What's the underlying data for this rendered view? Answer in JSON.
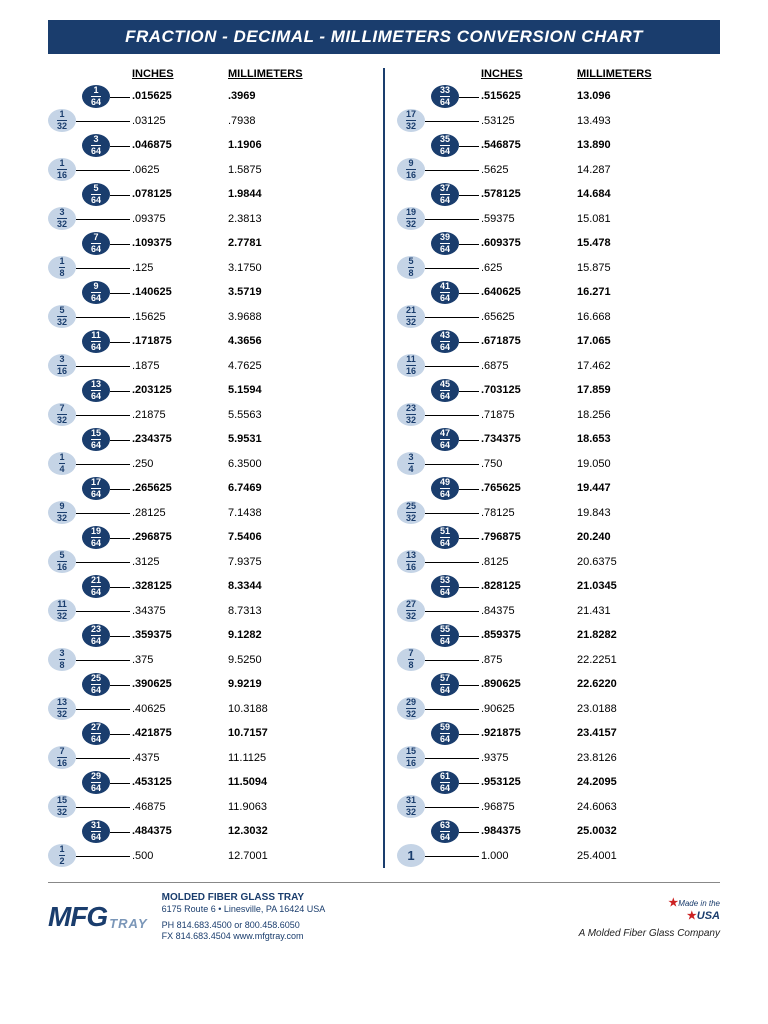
{
  "title": "FRACTION - DECIMAL - MILLIMETERS CONVERSION CHART",
  "headings": {
    "inches": "INCHES",
    "millimeters": "MILLIMETERS"
  },
  "colors": {
    "title_bg": "#1a3d6d",
    "title_text": "#ffffff",
    "frac64_bg": "#1a3d6d",
    "frac64_text": "#ffffff",
    "frac32_bg": "#c5d4e6",
    "frac32_text": "#1a3d6d"
  },
  "left_rows": [
    {
      "num64": "1",
      "den64": "64",
      "inches": ".015625",
      "mm": ".3969",
      "bold": true
    },
    {
      "num32": "1",
      "den32": "32",
      "inches": ".03125",
      "mm": ".7938"
    },
    {
      "num64": "3",
      "den64": "64",
      "inches": ".046875",
      "mm": "1.1906",
      "bold": true
    },
    {
      "num32": "1",
      "den32": "16",
      "inches": ".0625",
      "mm": "1.5875"
    },
    {
      "num64": "5",
      "den64": "64",
      "inches": ".078125",
      "mm": "1.9844",
      "bold": true
    },
    {
      "num32": "3",
      "den32": "32",
      "inches": ".09375",
      "mm": "2.3813"
    },
    {
      "num64": "7",
      "den64": "64",
      "inches": ".109375",
      "mm": "2.7781",
      "bold": true
    },
    {
      "num32": "1",
      "den32": "8",
      "inches": ".125",
      "mm": "3.1750"
    },
    {
      "num64": "9",
      "den64": "64",
      "inches": ".140625",
      "mm": "3.5719",
      "bold": true
    },
    {
      "num32": "5",
      "den32": "32",
      "inches": ".15625",
      "mm": "3.9688"
    },
    {
      "num64": "11",
      "den64": "64",
      "inches": ".171875",
      "mm": "4.3656",
      "bold": true
    },
    {
      "num32": "3",
      "den32": "16",
      "inches": ".1875",
      "mm": "4.7625"
    },
    {
      "num64": "13",
      "den64": "64",
      "inches": ".203125",
      "mm": "5.1594",
      "bold": true
    },
    {
      "num32": "7",
      "den32": "32",
      "inches": ".21875",
      "mm": "5.5563"
    },
    {
      "num64": "15",
      "den64": "64",
      "inches": ".234375",
      "mm": "5.9531",
      "bold": true
    },
    {
      "num32": "1",
      "den32": "4",
      "inches": ".250",
      "mm": "6.3500"
    },
    {
      "num64": "17",
      "den64": "64",
      "inches": ".265625",
      "mm": "6.7469",
      "bold": true
    },
    {
      "num32": "9",
      "den32": "32",
      "inches": ".28125",
      "mm": "7.1438"
    },
    {
      "num64": "19",
      "den64": "64",
      "inches": ".296875",
      "mm": "7.5406",
      "bold": true
    },
    {
      "num32": "5",
      "den32": "16",
      "inches": ".3125",
      "mm": "7.9375"
    },
    {
      "num64": "21",
      "den64": "64",
      "inches": ".328125",
      "mm": "8.3344",
      "bold": true
    },
    {
      "num32": "11",
      "den32": "32",
      "inches": ".34375",
      "mm": "8.7313"
    },
    {
      "num64": "23",
      "den64": "64",
      "inches": ".359375",
      "mm": "9.1282",
      "bold": true
    },
    {
      "num32": "3",
      "den32": "8",
      "inches": ".375",
      "mm": "9.5250"
    },
    {
      "num64": "25",
      "den64": "64",
      "inches": ".390625",
      "mm": "9.9219",
      "bold": true
    },
    {
      "num32": "13",
      "den32": "32",
      "inches": ".40625",
      "mm": "10.3188"
    },
    {
      "num64": "27",
      "den64": "64",
      "inches": ".421875",
      "mm": "10.7157",
      "bold": true
    },
    {
      "num32": "7",
      "den32": "16",
      "inches": ".4375",
      "mm": "11.1125"
    },
    {
      "num64": "29",
      "den64": "64",
      "inches": ".453125",
      "mm": "11.5094",
      "bold": true
    },
    {
      "num32": "15",
      "den32": "32",
      "inches": ".46875",
      "mm": "11.9063"
    },
    {
      "num64": "31",
      "den64": "64",
      "inches": ".484375",
      "mm": "12.3032",
      "bold": true
    },
    {
      "num32": "1",
      "den32": "2",
      "inches": ".500",
      "mm": "12.7001"
    }
  ],
  "right_rows": [
    {
      "num64": "33",
      "den64": "64",
      "inches": ".515625",
      "mm": "13.096",
      "bold": true
    },
    {
      "num32": "17",
      "den32": "32",
      "inches": ".53125",
      "mm": "13.493"
    },
    {
      "num64": "35",
      "den64": "64",
      "inches": ".546875",
      "mm": "13.890",
      "bold": true
    },
    {
      "num32": "9",
      "den32": "16",
      "inches": ".5625",
      "mm": "14.287"
    },
    {
      "num64": "37",
      "den64": "64",
      "inches": ".578125",
      "mm": "14.684",
      "bold": true
    },
    {
      "num32": "19",
      "den32": "32",
      "inches": ".59375",
      "mm": "15.081"
    },
    {
      "num64": "39",
      "den64": "64",
      "inches": ".609375",
      "mm": "15.478",
      "bold": true
    },
    {
      "num32": "5",
      "den32": "8",
      "inches": ".625",
      "mm": "15.875"
    },
    {
      "num64": "41",
      "den64": "64",
      "inches": ".640625",
      "mm": "16.271",
      "bold": true
    },
    {
      "num32": "21",
      "den32": "32",
      "inches": ".65625",
      "mm": "16.668"
    },
    {
      "num64": "43",
      "den64": "64",
      "inches": ".671875",
      "mm": "17.065",
      "bold": true
    },
    {
      "num32": "11",
      "den32": "16",
      "inches": ".6875",
      "mm": "17.462"
    },
    {
      "num64": "45",
      "den64": "64",
      "inches": ".703125",
      "mm": "17.859",
      "bold": true
    },
    {
      "num32": "23",
      "den32": "32",
      "inches": ".71875",
      "mm": "18.256"
    },
    {
      "num64": "47",
      "den64": "64",
      "inches": ".734375",
      "mm": "18.653",
      "bold": true
    },
    {
      "num32": "3",
      "den32": "4",
      "inches": ".750",
      "mm": "19.050"
    },
    {
      "num64": "49",
      "den64": "64",
      "inches": ".765625",
      "mm": "19.447",
      "bold": true
    },
    {
      "num32": "25",
      "den32": "32",
      "inches": ".78125",
      "mm": "19.843"
    },
    {
      "num64": "51",
      "den64": "64",
      "inches": ".796875",
      "mm": "20.240",
      "bold": true
    },
    {
      "num32": "13",
      "den32": "16",
      "inches": ".8125",
      "mm": "20.6375"
    },
    {
      "num64": "53",
      "den64": "64",
      "inches": ".828125",
      "mm": "21.0345",
      "bold": true
    },
    {
      "num32": "27",
      "den32": "32",
      "inches": ".84375",
      "mm": "21.431"
    },
    {
      "num64": "55",
      "den64": "64",
      "inches": ".859375",
      "mm": "21.8282",
      "bold": true
    },
    {
      "num32": "7",
      "den32": "8",
      "inches": ".875",
      "mm": "22.2251"
    },
    {
      "num64": "57",
      "den64": "64",
      "inches": ".890625",
      "mm": "22.6220",
      "bold": true
    },
    {
      "num32": "29",
      "den32": "32",
      "inches": ".90625",
      "mm": "23.0188"
    },
    {
      "num64": "59",
      "den64": "64",
      "inches": ".921875",
      "mm": "23.4157",
      "bold": true
    },
    {
      "num32": "15",
      "den32": "16",
      "inches": ".9375",
      "mm": "23.8126"
    },
    {
      "num64": "61",
      "den64": "64",
      "inches": ".953125",
      "mm": "24.2095",
      "bold": true
    },
    {
      "num32": "31",
      "den32": "32",
      "inches": ".96875",
      "mm": "24.6063"
    },
    {
      "num64": "63",
      "den64": "64",
      "inches": ".984375",
      "mm": "25.0032",
      "bold": true
    },
    {
      "whole": "1",
      "inches": "1.000",
      "mm": "25.4001"
    }
  ],
  "footer": {
    "logo_main": "MFG",
    "logo_sub": "TRAY",
    "company": "MOLDED FIBER GLASS TRAY",
    "address": "6175 Route 6 • Linesville, PA 16424 USA",
    "phone": "PH  814.683.4500 or 800.458.6050",
    "fax": "FX  814.683.4504    www.mfgtray.com",
    "made_in": "Made in the",
    "usa": "USA",
    "parent": "A Molded Fiber Glass Company"
  }
}
